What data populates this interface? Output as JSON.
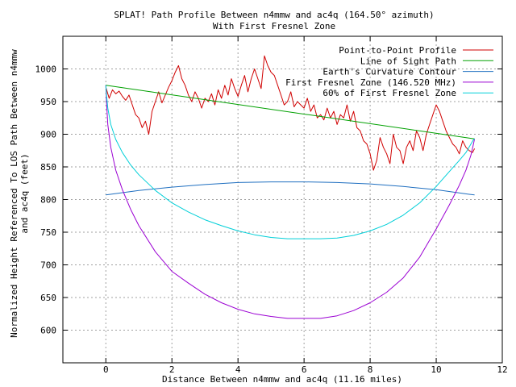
{
  "chart_data": {
    "type": "line",
    "title": "SPLAT! Path Profile Between n4mmw and ac4q (164.50° azimuth)",
    "subtitle": "With First Fresnel Zone",
    "xlabel": "Distance Between n4mmw and ac4q (11.16 miles)",
    "ylabel": "Normalized Height Referenced To LOS Path Between n4mmw and ac4q (feet)",
    "xlim": [
      -1.3,
      12
    ],
    "ylim": [
      550,
      1050
    ],
    "xticks": [
      0,
      2,
      4,
      6,
      8,
      10,
      12
    ],
    "yticks": [
      600,
      650,
      700,
      750,
      800,
      850,
      900,
      950,
      1000
    ],
    "grid": true,
    "legend_position": "top-right",
    "series": [
      {
        "name": "Point-to-Point Profile",
        "color": "#d00000",
        "x": [
          0,
          0.1,
          0.2,
          0.3,
          0.4,
          0.5,
          0.6,
          0.7,
          0.8,
          0.9,
          1.0,
          1.1,
          1.2,
          1.3,
          1.4,
          1.5,
          1.6,
          1.7,
          1.8,
          1.9,
          2.0,
          2.1,
          2.2,
          2.3,
          2.4,
          2.5,
          2.6,
          2.7,
          2.8,
          2.9,
          3.0,
          3.1,
          3.2,
          3.3,
          3.4,
          3.5,
          3.6,
          3.7,
          3.8,
          3.9,
          4.0,
          4.1,
          4.2,
          4.3,
          4.4,
          4.5,
          4.6,
          4.7,
          4.8,
          4.9,
          5.0,
          5.1,
          5.2,
          5.3,
          5.4,
          5.5,
          5.6,
          5.7,
          5.8,
          5.9,
          6.0,
          6.1,
          6.2,
          6.3,
          6.4,
          6.5,
          6.6,
          6.7,
          6.8,
          6.9,
          7.0,
          7.1,
          7.2,
          7.3,
          7.4,
          7.5,
          7.6,
          7.7,
          7.8,
          7.9,
          8.0,
          8.1,
          8.2,
          8.3,
          8.4,
          8.5,
          8.6,
          8.7,
          8.8,
          8.9,
          9.0,
          9.1,
          9.2,
          9.3,
          9.4,
          9.5,
          9.6,
          9.7,
          9.8,
          9.9,
          10.0,
          10.1,
          10.2,
          10.3,
          10.4,
          10.5,
          10.6,
          10.7,
          10.8,
          10.9,
          11.0,
          11.1,
          11.16
        ],
        "y": [
          972,
          955,
          968,
          962,
          966,
          958,
          952,
          960,
          945,
          930,
          925,
          910,
          920,
          900,
          935,
          950,
          965,
          948,
          960,
          972,
          982,
          995,
          1005,
          985,
          975,
          960,
          950,
          965,
          955,
          940,
          955,
          950,
          962,
          945,
          968,
          955,
          975,
          960,
          985,
          970,
          958,
          975,
          990,
          965,
          985,
          1000,
          985,
          970,
          1020,
          1005,
          995,
          990,
          975,
          960,
          945,
          950,
          965,
          942,
          950,
          945,
          940,
          955,
          935,
          945,
          925,
          930,
          922,
          940,
          925,
          935,
          915,
          930,
          925,
          945,
          920,
          935,
          910,
          905,
          890,
          885,
          870,
          845,
          860,
          895,
          880,
          870,
          855,
          900,
          880,
          875,
          855,
          880,
          890,
          875,
          905,
          895,
          875,
          900,
          915,
          930,
          945,
          935,
          920,
          905,
          895,
          885,
          880,
          870,
          890,
          880,
          875,
          872,
          878
        ]
      },
      {
        "name": "Line of Sight Path",
        "color": "#00a000",
        "x": [
          0,
          11.16
        ],
        "y": [
          975,
          893
        ]
      },
      {
        "name": "Earth's Curvature Contour",
        "color": "#1f6fc0",
        "x": [
          0,
          1,
          2,
          3,
          4,
          5,
          5.58,
          6,
          7,
          8,
          9,
          10,
          11,
          11.16
        ],
        "y": [
          807,
          814,
          819,
          823,
          826,
          827,
          827,
          827,
          826,
          824,
          820,
          815,
          808,
          807
        ]
      },
      {
        "name": "First Fresnel Zone (146.520 MHz)",
        "color": "#9b00d3",
        "x": [
          0,
          0.02,
          0.06,
          0.15,
          0.3,
          0.5,
          0.75,
          1,
          1.5,
          2,
          2.5,
          3,
          3.5,
          4,
          4.5,
          5,
          5.5,
          6,
          6.5,
          7,
          7.5,
          8,
          8.5,
          9,
          9.5,
          10,
          10.4,
          10.7,
          10.9,
          11.05,
          11.12,
          11.16
        ],
        "y": [
          975,
          950,
          915,
          880,
          845,
          815,
          785,
          760,
          720,
          690,
          672,
          655,
          642,
          632,
          625,
          621,
          618,
          618,
          618,
          622,
          630,
          642,
          658,
          680,
          712,
          755,
          792,
          822,
          845,
          868,
          883,
          893
        ]
      },
      {
        "name": "60% of First Fresnel Zone",
        "color": "#00cfd8",
        "x": [
          0,
          0.02,
          0.06,
          0.15,
          0.3,
          0.5,
          0.75,
          1,
          1.5,
          2,
          2.5,
          3,
          3.5,
          4,
          4.5,
          5,
          5.5,
          6,
          6.5,
          7,
          7.5,
          8,
          8.5,
          9,
          9.5,
          10,
          10.4,
          10.7,
          10.9,
          11.05,
          11.12,
          11.16
        ],
        "y": [
          975,
          960,
          940,
          915,
          892,
          872,
          853,
          838,
          814,
          795,
          781,
          769,
          760,
          752,
          746,
          742,
          740,
          740,
          740,
          741,
          745,
          752,
          762,
          776,
          795,
          820,
          843,
          860,
          872,
          885,
          891,
          893
        ]
      }
    ]
  }
}
